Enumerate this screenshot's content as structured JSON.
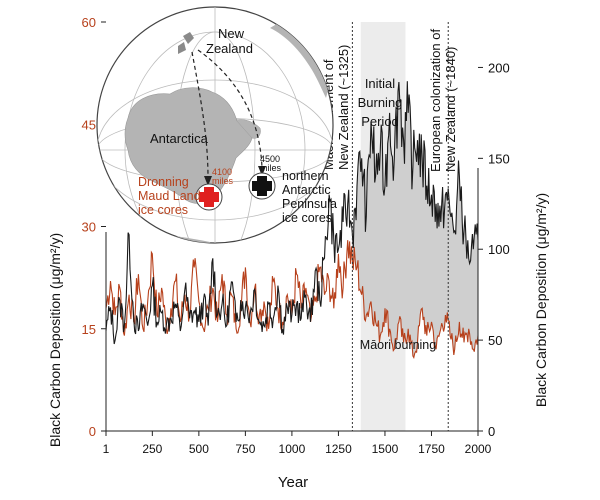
{
  "colors": {
    "red_series": "#b7411c",
    "black_series": "#1a1a1a",
    "shade": "#cfcfcf",
    "period_band": "#ececec",
    "land": "#b4b4b4",
    "globe_line": "#bbbbbb"
  },
  "map": {
    "label_new_zealand_1": "New",
    "label_new_zealand_2": "Zealand",
    "label_antarctica": "Antarctica",
    "label_dml_1": "Dronning",
    "label_dml_2": "Maud Land",
    "label_dml_3": "ice cores",
    "label_dml_distance_1": "4100",
    "label_dml_distance_2": "miles",
    "label_nap_distance_1": "4500",
    "label_nap_distance_2": "miles",
    "label_nap_1": "northern",
    "label_nap_2": "Antarctic",
    "label_nap_3": "Peninsula",
    "label_nap_4": "ice cores",
    "cross_icon_red": "red-cross-icon",
    "cross_icon_black": "black-cross-icon"
  },
  "annotations": {
    "maori_settlement_1": "Māori settlement of",
    "maori_settlement_2": "New Zealand (~1325)",
    "initial_burning_1": "Initial",
    "initial_burning_2": "Burning",
    "initial_burning_3": "Period",
    "european_1": "European colonization of",
    "european_2": "New Zealand (~1840)",
    "maori_burning": "Māori burning"
  },
  "chart_data": {
    "type": "line",
    "xlabel": "Year",
    "ylabel_left": "Black Carbon Deposition (μg/m²/y)",
    "ylabel_right": "Black Carbon Deposition (μg/m²/y)",
    "xlim": [
      1,
      2000
    ],
    "ylim_left": [
      0,
      60
    ],
    "ylim_right": [
      0,
      225
    ],
    "x_ticks": [
      1,
      250,
      500,
      750,
      1000,
      1250,
      1500,
      1750,
      2000
    ],
    "x_tick_labels": [
      "1",
      "250",
      "500",
      "750",
      "1000",
      "1250",
      "1500",
      "1750",
      "2000"
    ],
    "y_ticks_left": [
      0,
      15,
      30,
      45,
      60
    ],
    "y_tick_labels_left": [
      "0",
      "15",
      "30",
      "45",
      "60"
    ],
    "y_ticks_right": [
      0,
      50,
      100,
      150,
      200
    ],
    "y_tick_labels_right": [
      "0",
      "50",
      "100",
      "150",
      "200"
    ],
    "events": [
      {
        "year": 1325,
        "label": "Māori settlement of New Zealand (~1325)"
      },
      {
        "year": 1840,
        "label": "European colonization of New Zealand (~1840)"
      }
    ],
    "shaded_period": [
      1370,
      1610
    ],
    "series": [
      {
        "name": "Dronning Maud Land ice cores",
        "axis": "left",
        "x": [
          1,
          25,
          50,
          75,
          100,
          125,
          150,
          175,
          200,
          225,
          250,
          275,
          300,
          325,
          350,
          375,
          400,
          425,
          450,
          475,
          500,
          525,
          550,
          575,
          600,
          625,
          650,
          675,
          700,
          725,
          750,
          775,
          800,
          825,
          850,
          875,
          900,
          925,
          950,
          975,
          1000,
          1025,
          1050,
          1075,
          1100,
          1125,
          1150,
          1175,
          1200,
          1225,
          1250,
          1275,
          1300,
          1325,
          1350,
          1375,
          1400,
          1425,
          1450,
          1475,
          1500,
          1525,
          1550,
          1575,
          1600,
          1625,
          1650,
          1675,
          1700,
          1725,
          1750,
          1775,
          1800,
          1825,
          1850,
          1875,
          1900,
          1925,
          1950,
          1975,
          2000
        ],
        "values": [
          18,
          22,
          17,
          21,
          14,
          20,
          16,
          23,
          15,
          19,
          26,
          17,
          21,
          15,
          18,
          22,
          16,
          20,
          17,
          24,
          19,
          15,
          18,
          21,
          16,
          23,
          17,
          20,
          15,
          18,
          24,
          16,
          21,
          17,
          19,
          15,
          22,
          18,
          16,
          20,
          17,
          23,
          18,
          21,
          16,
          19,
          24,
          20,
          22,
          18,
          26,
          21,
          28,
          25,
          24,
          20,
          17,
          19,
          16,
          14,
          18,
          15,
          12,
          16,
          13,
          15,
          11,
          13,
          18,
          14,
          16,
          12,
          15,
          17,
          14,
          12,
          16,
          13,
          15,
          12,
          14
        ]
      },
      {
        "name": "northern Antarctic Peninsula ice cores",
        "axis": "right",
        "x": [
          1,
          25,
          50,
          75,
          100,
          125,
          150,
          175,
          200,
          225,
          250,
          275,
          300,
          325,
          350,
          375,
          400,
          425,
          450,
          475,
          500,
          525,
          550,
          575,
          600,
          625,
          650,
          675,
          700,
          725,
          750,
          775,
          800,
          825,
          850,
          875,
          900,
          925,
          950,
          975,
          1000,
          1025,
          1050,
          1075,
          1100,
          1125,
          1150,
          1175,
          1200,
          1225,
          1250,
          1275,
          1300,
          1325,
          1350,
          1375,
          1400,
          1425,
          1450,
          1475,
          1500,
          1525,
          1550,
          1575,
          1600,
          1625,
          1650,
          1675,
          1700,
          1725,
          1750,
          1775,
          1800,
          1825,
          1850,
          1875,
          1900,
          1925,
          1950,
          1975,
          2000
        ],
        "values": [
          55,
          68,
          50,
          72,
          58,
          108,
          62,
          55,
          70,
          58,
          80,
          60,
          65,
          58,
          62,
          70,
          55,
          78,
          62,
          66,
          60,
          72,
          58,
          95,
          64,
          70,
          58,
          82,
          60,
          72,
          68,
          64,
          78,
          60,
          58,
          70,
          62,
          80,
          56,
          68,
          64,
          70,
          62,
          75,
          60,
          88,
          72,
          95,
          130,
          105,
          100,
          115,
          125,
          108,
          135,
          150,
          118,
          170,
          140,
          155,
          135,
          175,
          150,
          192,
          160,
          175,
          145,
          160,
          150,
          135,
          130,
          125,
          115,
          130,
          120,
          110,
          140,
          110,
          95,
          100,
          105
        ]
      }
    ]
  }
}
